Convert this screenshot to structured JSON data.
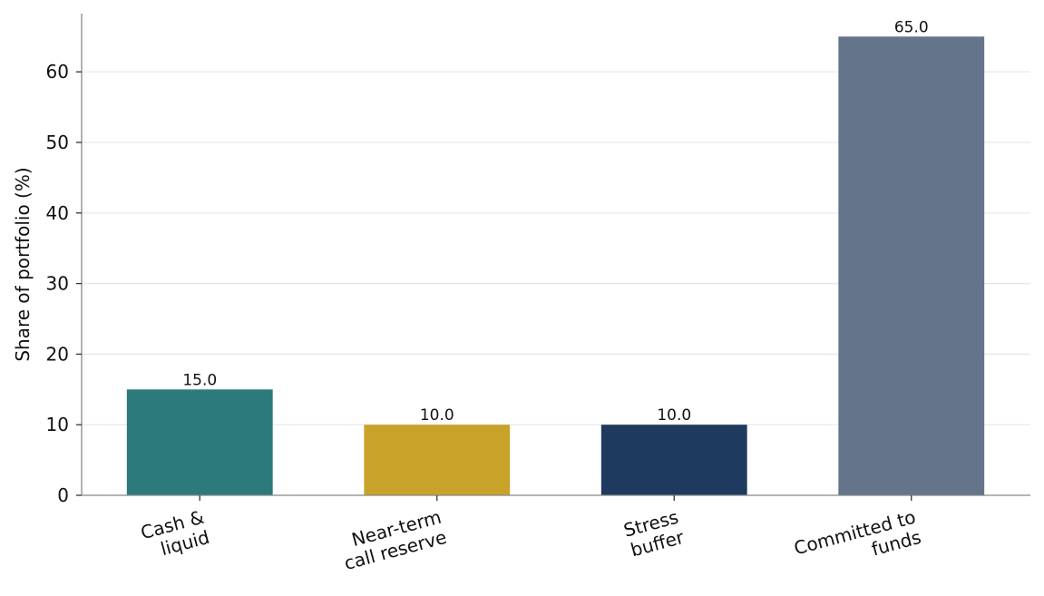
{
  "chart_data": {
    "type": "bar",
    "title": "",
    "xlabel": "",
    "ylabel": "Share of portfolio (%)",
    "categories": [
      [
        "Cash &",
        "liquid"
      ],
      [
        "Near-term",
        "call reserve"
      ],
      [
        "Stress",
        "buffer"
      ],
      [
        "Committed to",
        "funds"
      ]
    ],
    "values": [
      15.0,
      10.0,
      10.0,
      65.0
    ],
    "value_labels": [
      "15.0",
      "10.0",
      "10.0",
      "65.0"
    ],
    "colors": [
      "#2c7a7b",
      "#c9a229",
      "#1f3a5f",
      "#64748b"
    ],
    "ylim": [
      0,
      68.25
    ],
    "yticks": [
      0,
      10,
      20,
      30,
      40,
      50,
      60
    ],
    "ytick_labels": [
      "0",
      "10",
      "20",
      "30",
      "40",
      "50",
      "60"
    ],
    "grid": "horizontal",
    "legend": "none",
    "x_tick_rotation_deg": -15
  }
}
